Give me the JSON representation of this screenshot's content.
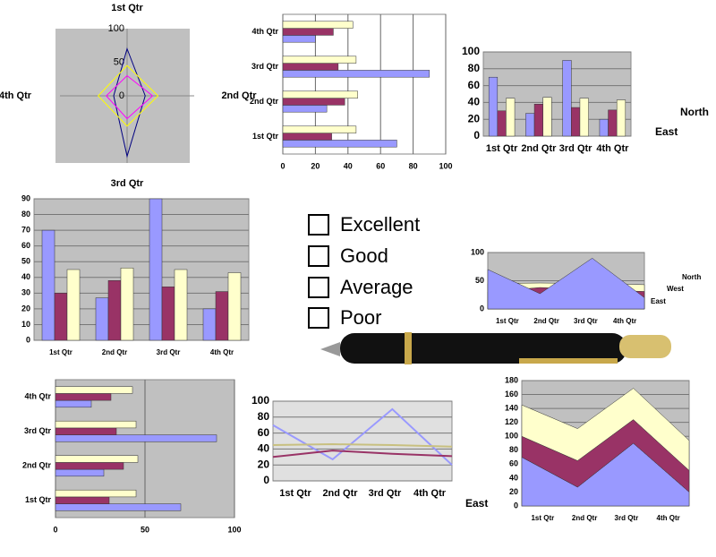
{
  "chart_data": [
    {
      "type": "radar",
      "categories": [
        "1st Qtr",
        "2nd Qtr",
        "3rd Qtr",
        "4th Qtr"
      ],
      "ylim": [
        0,
        100
      ],
      "yticks": [
        0,
        50,
        100
      ],
      "background": "#c0c0c0",
      "series": [
        {
          "color": "#000080",
          "values": [
            70,
            27,
            90,
            20
          ]
        },
        {
          "color": "#ff00ff",
          "values": [
            30,
            38,
            34,
            31
          ]
        },
        {
          "color": "#ffff00",
          "values": [
            45,
            46,
            45,
            43
          ]
        }
      ]
    },
    {
      "type": "bar",
      "categories": [
        "1st Qtr",
        "2nd Qtr",
        "3rd Qtr",
        "4th Qtr"
      ],
      "xlim": [
        0,
        100
      ],
      "xticks": [
        0,
        20,
        40,
        60,
        80,
        100
      ],
      "grid": true,
      "background": "#ffffff",
      "series": [
        {
          "color": "#9999ff",
          "values": [
            70,
            27,
            90,
            20
          ]
        },
        {
          "color": "#993366",
          "values": [
            30,
            38,
            34,
            31
          ]
        },
        {
          "color": "#ffffcc",
          "values": [
            45,
            46,
            45,
            43
          ]
        }
      ]
    },
    {
      "type": "column",
      "categories": [
        "1st Qtr",
        "2nd Qtr",
        "3rd Qtr",
        "4th Qtr"
      ],
      "ylim": [
        0,
        100
      ],
      "yticks": [
        0,
        20,
        40,
        60,
        80,
        100
      ],
      "grid": true,
      "background": "#c0c0c0",
      "series": [
        {
          "name": "East",
          "color": "#9999ff",
          "values": [
            70,
            27,
            90,
            20
          ]
        },
        {
          "color": "#993366",
          "values": [
            30,
            38,
            34,
            31
          ]
        },
        {
          "name": "North",
          "color": "#ffffcc",
          "values": [
            45,
            46,
            45,
            43
          ]
        }
      ]
    },
    {
      "type": "column",
      "categories": [
        "1st Qtr",
        "2nd Qtr",
        "3rd Qtr",
        "4th Qtr"
      ],
      "ylim": [
        0,
        90
      ],
      "yticks": [
        0,
        10,
        20,
        30,
        40,
        50,
        60,
        70,
        80,
        90
      ],
      "grid": true,
      "background": "#c0c0c0",
      "series": [
        {
          "color": "#9999ff",
          "values": [
            70,
            27,
            90,
            20
          ]
        },
        {
          "color": "#993366",
          "values": [
            30,
            38,
            34,
            31
          ]
        },
        {
          "color": "#ffffcc",
          "values": [
            45,
            46,
            45,
            43
          ]
        }
      ]
    },
    {
      "type": "area",
      "categories": [
        "1st Qtr",
        "2nd Qtr",
        "3rd Qtr",
        "4th Qtr"
      ],
      "ylim": [
        0,
        100
      ],
      "yticks": [
        0,
        50,
        100
      ],
      "grid": true,
      "background": "#c0c0c0",
      "series": [
        {
          "name": "East",
          "color": "#9999ff",
          "values": [
            70,
            27,
            90,
            20
          ]
        },
        {
          "name": "West",
          "color": "#993366",
          "values": [
            30,
            38,
            34,
            31
          ]
        },
        {
          "name": "North",
          "color": "#ffffcc",
          "values": [
            45,
            46,
            45,
            43
          ]
        }
      ]
    },
    {
      "type": "bar",
      "categories": [
        "1st Qtr",
        "2nd Qtr",
        "3rd Qtr",
        "4th Qtr"
      ],
      "xlim": [
        0,
        100
      ],
      "xticks": [
        0,
        50,
        100
      ],
      "grid": true,
      "background": "#c0c0c0",
      "series": [
        {
          "color": "#9999ff",
          "values": [
            70,
            27,
            90,
            20
          ]
        },
        {
          "color": "#993366",
          "values": [
            30,
            38,
            34,
            31
          ]
        },
        {
          "color": "#ffffcc",
          "values": [
            45,
            46,
            45,
            43
          ]
        }
      ]
    },
    {
      "type": "line",
      "categories": [
        "1st Qtr",
        "2nd Qtr",
        "3rd Qtr",
        "4th Qtr"
      ],
      "ylim": [
        0,
        100
      ],
      "yticks": [
        0,
        20,
        40,
        60,
        80,
        100
      ],
      "grid": true,
      "background": "#e0e0e0",
      "series": [
        {
          "name": "East",
          "color": "#9999ff",
          "values": [
            70,
            27,
            90,
            20
          ]
        },
        {
          "color": "#993366",
          "values": [
            30,
            38,
            34,
            31
          ]
        },
        {
          "color": "#ffffcc",
          "values": [
            45,
            46,
            45,
            43
          ]
        }
      ]
    },
    {
      "type": "stacked_area",
      "categories": [
        "1st Qtr",
        "2nd Qtr",
        "3rd Qtr",
        "4th Qtr"
      ],
      "ylim": [
        0,
        180
      ],
      "yticks": [
        0,
        20,
        40,
        60,
        80,
        100,
        120,
        140,
        160,
        180
      ],
      "grid": true,
      "background": "#c0c0c0",
      "series": [
        {
          "color": "#9999ff",
          "values": [
            70,
            27,
            90,
            20
          ]
        },
        {
          "color": "#993366",
          "values": [
            30,
            38,
            34,
            31
          ]
        },
        {
          "color": "#ffffcc",
          "values": [
            45,
            46,
            45,
            43
          ]
        }
      ]
    }
  ],
  "checklist": [
    "Excellent",
    "Good",
    "Average",
    "Poor"
  ]
}
